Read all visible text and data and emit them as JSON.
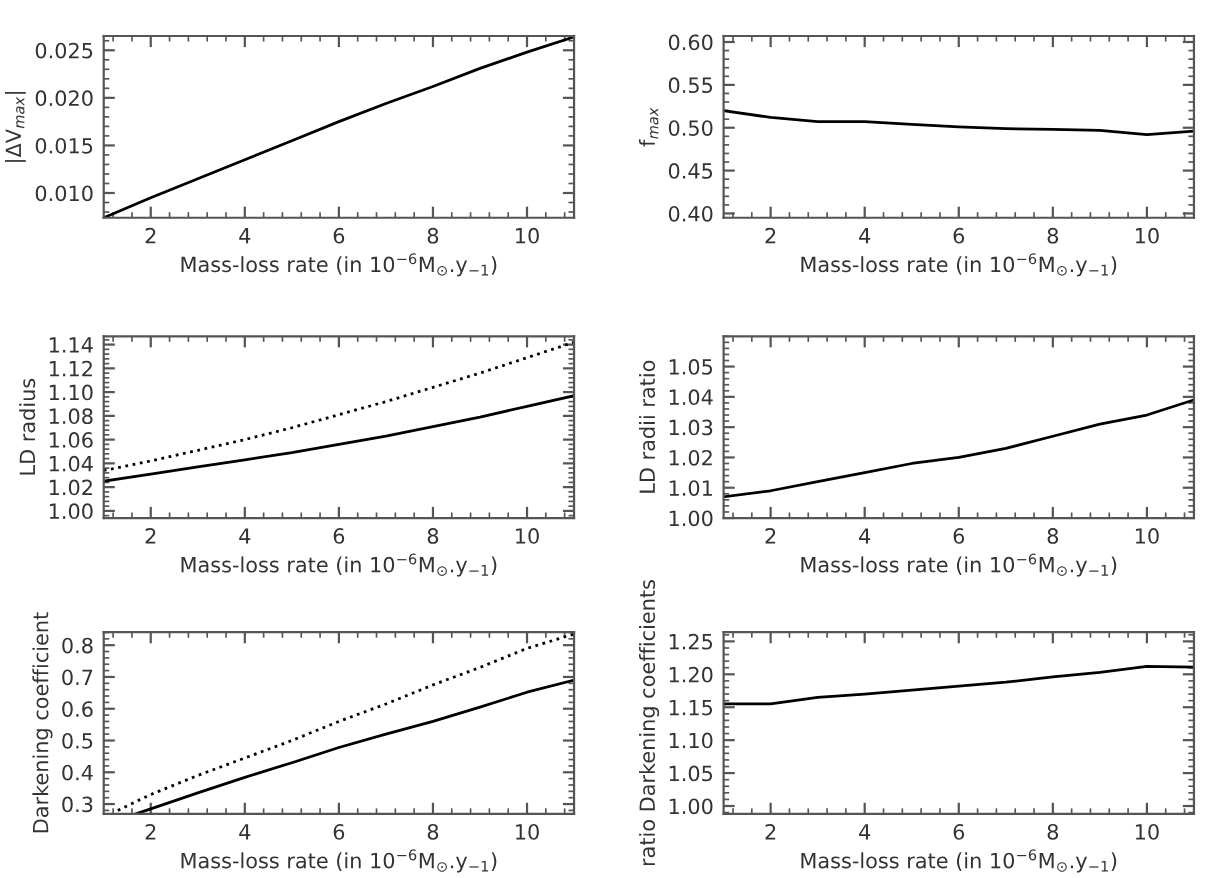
{
  "chart_data": [
    {
      "type": "line",
      "xlabel": "Mass-loss rate (in 10$^{−6}$M$_{⊙}$.y$_{−1}$)",
      "ylabel": "|ΔV$_{max}$|",
      "x": [
        1,
        2,
        3,
        4,
        5,
        6,
        7,
        8,
        9,
        10,
        11
      ],
      "xlim": [
        1,
        11
      ],
      "xticks": [
        2,
        4,
        6,
        8,
        10
      ],
      "ylim": [
        0.0074,
        0.0265
      ],
      "yticks": [
        {
          "value": 0.01,
          "label": "0.010"
        },
        {
          "value": 0.015,
          "label": "0.015"
        },
        {
          "value": 0.02,
          "label": "0.020"
        },
        {
          "value": 0.025,
          "label": "0.025"
        }
      ],
      "series": [
        {
          "color": "#000000",
          "line_style": "solid",
          "values": [
            0.0074,
            0.0095,
            0.0115,
            0.0135,
            0.0155,
            0.0175,
            0.0194,
            0.0212,
            0.0231,
            0.0248,
            0.0264
          ]
        }
      ]
    },
    {
      "type": "line",
      "xlabel": "Mass-loss rate (in 10$^{−6}$M$_{⊙}$.y$_{−1}$)",
      "ylabel": "f$_{max}$",
      "x": [
        1,
        2,
        3,
        4,
        5,
        6,
        7,
        8,
        9,
        10,
        11
      ],
      "xlim": [
        1,
        11
      ],
      "xticks": [
        2,
        4,
        6,
        8,
        10
      ],
      "ylim": [
        0.395,
        0.607
      ],
      "yticks": [
        {
          "value": 0.4,
          "label": "0.40"
        },
        {
          "value": 0.45,
          "label": "0.45"
        },
        {
          "value": 0.5,
          "label": "0.50"
        },
        {
          "value": 0.55,
          "label": "0.55"
        },
        {
          "value": 0.6,
          "label": "0.60"
        }
      ],
      "series": [
        {
          "color": "#000000",
          "line_style": "solid",
          "values": [
            0.52,
            0.512,
            0.507,
            0.507,
            0.504,
            0.501,
            0.499,
            0.498,
            0.497,
            0.492,
            0.496
          ]
        }
      ]
    },
    {
      "type": "line",
      "xlabel": "Mass-loss rate (in 10$^{−6}$M$_{⊙}$.y$_{−1}$)",
      "ylabel": "LD radius",
      "x": [
        1,
        2,
        3,
        4,
        5,
        6,
        7,
        8,
        9,
        10,
        11
      ],
      "xlim": [
        1,
        11
      ],
      "xticks": [
        2,
        4,
        6,
        8,
        10
      ],
      "ylim": [
        0.994,
        1.147
      ],
      "yticks": [
        {
          "value": 1.0,
          "label": "1.00"
        },
        {
          "value": 1.02,
          "label": "1.02"
        },
        {
          "value": 1.04,
          "label": "1.04"
        },
        {
          "value": 1.06,
          "label": "1.06"
        },
        {
          "value": 1.08,
          "label": "1.08"
        },
        {
          "value": 1.1,
          "label": "1.10"
        },
        {
          "value": 1.12,
          "label": "1.12"
        },
        {
          "value": 1.14,
          "label": "1.14"
        }
      ],
      "series": [
        {
          "color": "#000000",
          "line_style": "solid",
          "values": [
            1.025,
            1.031,
            1.037,
            1.043,
            1.049,
            1.056,
            1.063,
            1.071,
            1.079,
            1.088,
            1.097
          ]
        },
        {
          "color": "#000000",
          "line_style": "dotted",
          "values": [
            1.034,
            1.042,
            1.051,
            1.06,
            1.07,
            1.081,
            1.092,
            1.104,
            1.116,
            1.129,
            1.142
          ]
        }
      ]
    },
    {
      "type": "line",
      "xlabel": "Mass-loss rate (in 10$^{−6}$M$_{⊙}$.y$_{−1}$)",
      "ylabel": "LD radii ratio",
      "x": [
        1,
        2,
        3,
        4,
        5,
        6,
        7,
        8,
        9,
        10,
        11
      ],
      "xlim": [
        1,
        11
      ],
      "xticks": [
        2,
        4,
        6,
        8,
        10
      ],
      "ylim": [
        1.0,
        1.06
      ],
      "yticks": [
        {
          "value": 1.0,
          "label": "1.00"
        },
        {
          "value": 1.01,
          "label": "1.01"
        },
        {
          "value": 1.02,
          "label": "1.02"
        },
        {
          "value": 1.03,
          "label": "1.03"
        },
        {
          "value": 1.04,
          "label": "1.04"
        },
        {
          "value": 1.05,
          "label": "1.05"
        }
      ],
      "series": [
        {
          "color": "#000000",
          "line_style": "solid",
          "values": [
            1.007,
            1.009,
            1.012,
            1.015,
            1.018,
            1.02,
            1.023,
            1.027,
            1.031,
            1.034,
            1.039
          ]
        }
      ]
    },
    {
      "type": "line",
      "xlabel": "Mass-loss rate (in 10$^{−6}$M$_{⊙}$.y$_{−1}$)",
      "ylabel": "Darkening coefficient",
      "xlim": [
        1,
        11
      ],
      "xticks": [
        2,
        4,
        6,
        8,
        10
      ],
      "ylim": [
        0.269,
        0.841
      ],
      "yticks": [
        0.3,
        0.4,
        0.5,
        0.6,
        0.7,
        0.8
      ],
      "series": [
        {
          "color": "#000000",
          "line_style": "solid",
          "x": [
            1.7,
            2,
            3,
            4,
            5,
            6,
            7,
            8,
            9,
            10,
            11
          ],
          "values": [
            0.27,
            0.285,
            0.335,
            0.384,
            0.43,
            0.478,
            0.52,
            0.56,
            0.605,
            0.652,
            0.69
          ]
        },
        {
          "color": "#000000",
          "line_style": "dotted",
          "x": [
            1.3,
            2,
            3,
            4,
            5,
            6,
            7,
            8,
            9,
            10,
            11
          ],
          "values": [
            0.28,
            0.33,
            0.39,
            0.445,
            0.5,
            0.56,
            0.615,
            0.675,
            0.73,
            0.79,
            0.835
          ]
        }
      ]
    },
    {
      "type": "line",
      "xlabel": "Mass-loss rate (in 10$^{−6}$M$_{⊙}$.y$_{−1}$)",
      "ylabel": "ratio Darkening coefficients",
      "x": [
        1,
        2,
        3,
        4,
        5,
        6,
        7,
        8,
        9,
        10,
        11
      ],
      "xlim": [
        1,
        11
      ],
      "xticks": [
        2,
        4,
        6,
        8,
        10
      ],
      "ylim": [
        0.988,
        1.264
      ],
      "yticks": [
        {
          "value": 1.0,
          "label": "1.00"
        },
        {
          "value": 1.05,
          "label": "1.05"
        },
        {
          "value": 1.1,
          "label": "1.10"
        },
        {
          "value": 1.15,
          "label": "1.15"
        },
        {
          "value": 1.2,
          "label": "1.20"
        },
        {
          "value": 1.25,
          "label": "1.25"
        }
      ],
      "series": [
        {
          "color": "#000000",
          "line_style": "solid",
          "values": [
            1.155,
            1.155,
            1.165,
            1.17,
            1.176,
            1.182,
            1.188,
            1.196,
            1.203,
            1.212,
            1.211
          ]
        }
      ]
    }
  ]
}
